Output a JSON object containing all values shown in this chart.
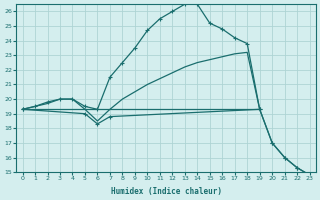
{
  "xlabel": "Humidex (Indice chaleur)",
  "background_color": "#d4eeee",
  "grid_color": "#aed4d4",
  "line_color": "#1a6e6e",
  "xlim": [
    -0.5,
    23.5
  ],
  "ylim": [
    15,
    26.5
  ],
  "xticks": [
    0,
    1,
    2,
    3,
    4,
    5,
    6,
    7,
    8,
    9,
    10,
    11,
    12,
    13,
    14,
    15,
    16,
    17,
    18,
    19,
    20,
    21,
    22,
    23
  ],
  "yticks": [
    15,
    16,
    17,
    18,
    19,
    20,
    21,
    22,
    23,
    24,
    25,
    26
  ],
  "curve1": {
    "x": [
      0,
      1,
      2,
      3,
      4,
      5,
      6,
      7,
      8,
      9,
      10,
      11,
      12,
      13,
      14,
      15,
      16,
      17,
      18,
      19,
      20,
      21,
      22,
      23
    ],
    "y": [
      19.3,
      19.5,
      19.8,
      20.0,
      20.0,
      19.5,
      19.3,
      21.5,
      22.5,
      23.5,
      24.7,
      25.5,
      26.0,
      26.5,
      26.5,
      25.2,
      24.8,
      24.2,
      23.8,
      19.3,
      17.0,
      16.0,
      15.3,
      14.8
    ]
  },
  "curve2": {
    "x": [
      0,
      1,
      2,
      3,
      4,
      5,
      6,
      7,
      8,
      9,
      10,
      11,
      12,
      13,
      14,
      15,
      16,
      17,
      18,
      19
    ],
    "y": [
      19.3,
      19.5,
      19.7,
      20.0,
      20.0,
      19.3,
      18.5,
      19.3,
      20.0,
      20.5,
      21.0,
      21.4,
      21.8,
      22.2,
      22.5,
      22.7,
      22.9,
      23.1,
      23.2,
      19.3
    ]
  },
  "curve3": {
    "x": [
      0,
      1,
      2,
      3,
      4,
      5,
      6,
      7,
      8,
      9,
      10,
      11,
      12,
      13,
      14,
      15,
      16,
      17,
      18,
      19
    ],
    "y": [
      19.3,
      19.3,
      19.3,
      19.3,
      19.3,
      19.3,
      19.3,
      19.3,
      19.3,
      19.3,
      19.3,
      19.3,
      19.3,
      19.3,
      19.3,
      19.3,
      19.3,
      19.3,
      19.3,
      19.3
    ]
  },
  "curve4": {
    "x": [
      0,
      5,
      6,
      7,
      19,
      20,
      21,
      22,
      23
    ],
    "y": [
      19.3,
      19.0,
      18.3,
      18.8,
      19.3,
      17.0,
      16.0,
      15.3,
      14.8
    ]
  }
}
